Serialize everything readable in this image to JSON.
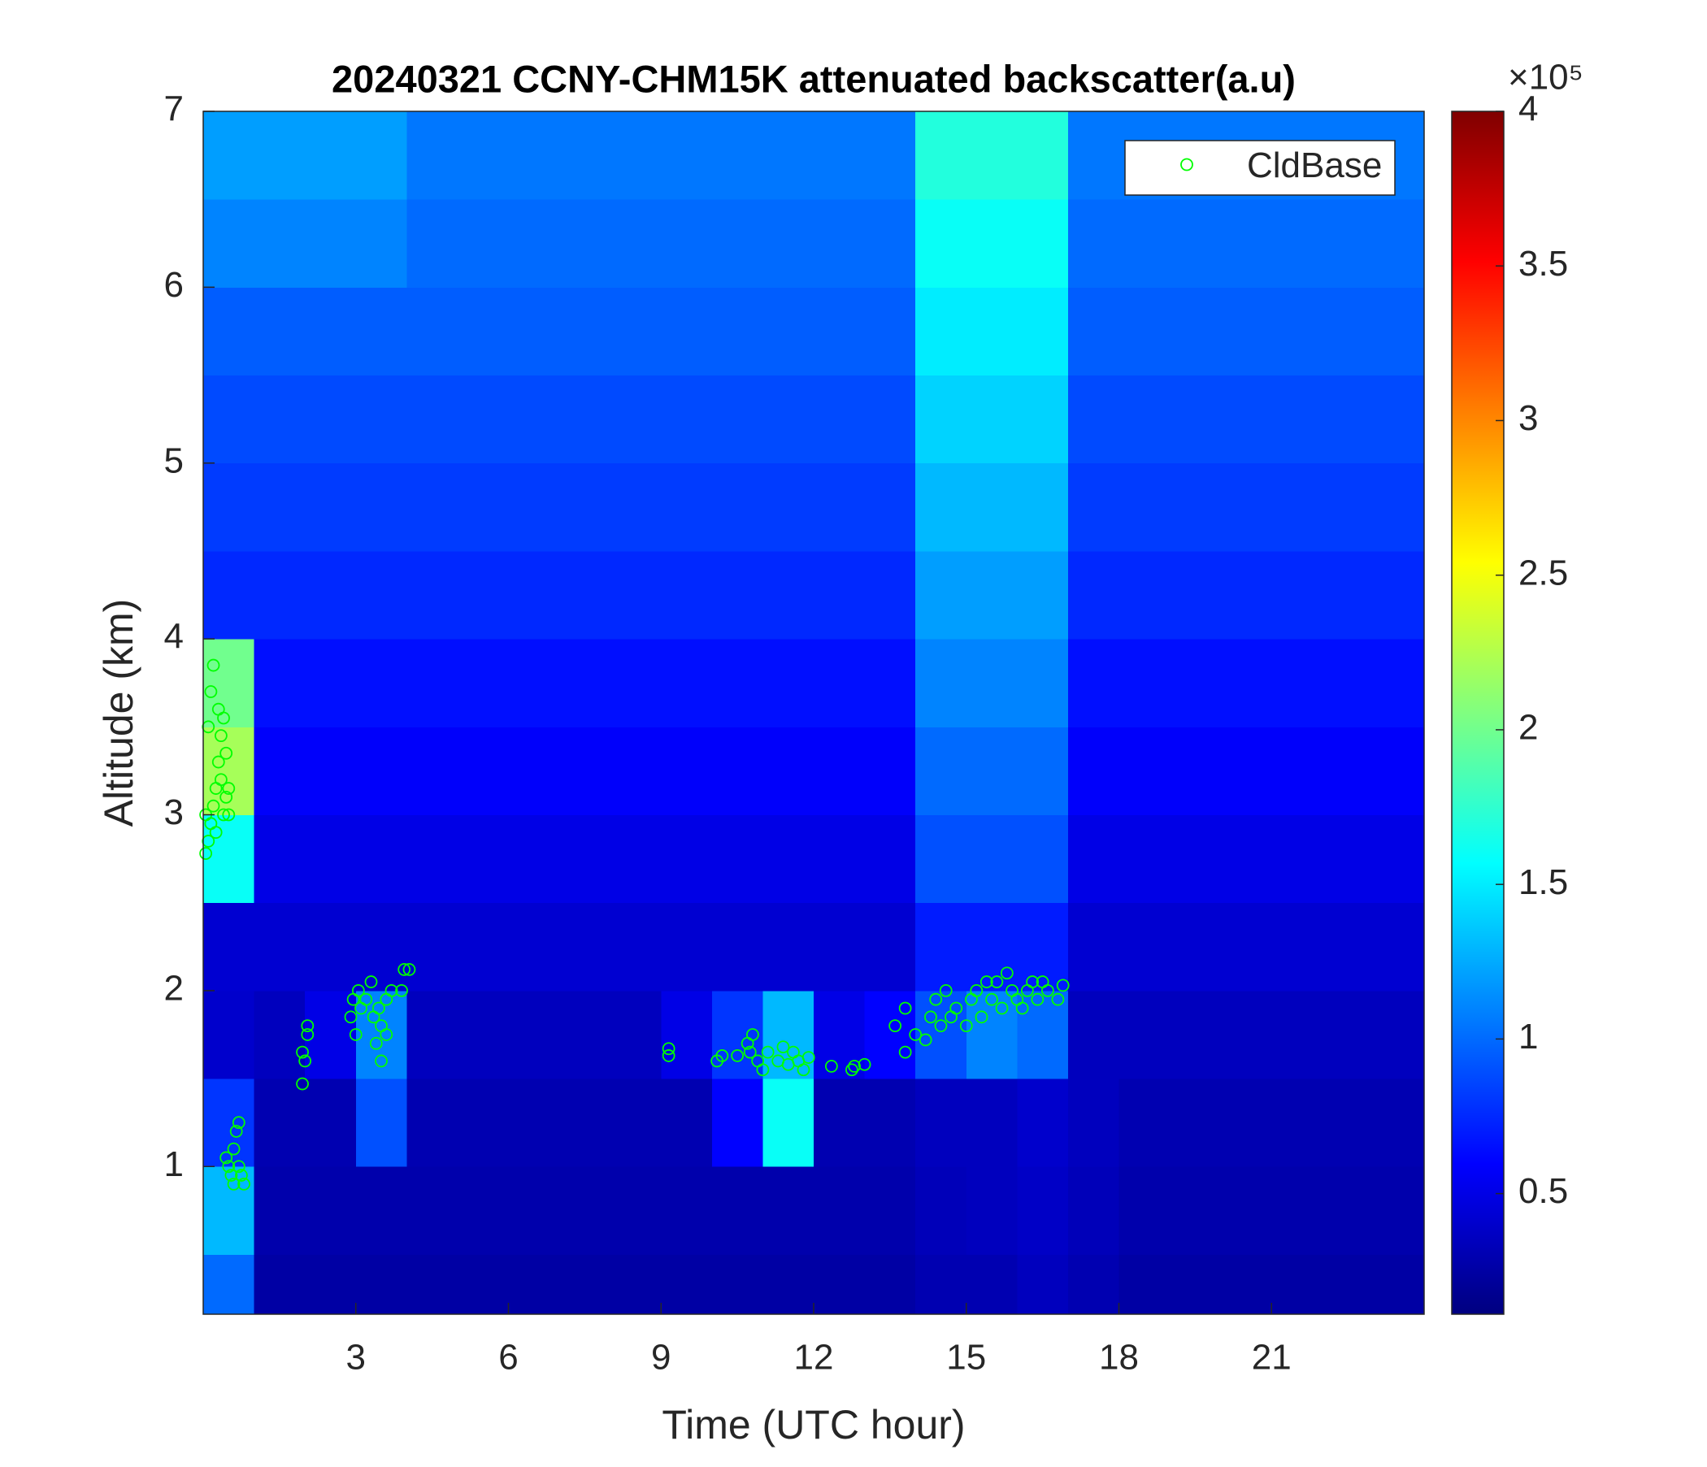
{
  "chart_data": {
    "type": "heatmap",
    "title": "20240321 CCNY-CHM15K attenuated backscatter(a.u)",
    "x_label": "Time (UTC hour)",
    "y_label": "Altitude (km)",
    "xlim": [
      0,
      24
    ],
    "ylim": [
      0.16,
      7
    ],
    "xticks": [
      3,
      6,
      9,
      12,
      15,
      18,
      21
    ],
    "yticks": [
      1,
      2,
      3,
      4,
      5,
      6,
      7
    ],
    "colormap": "jet",
    "clim": [
      0.11,
      4
    ],
    "colorbar_ticks": [
      0.5,
      1,
      1.5,
      2,
      2.5,
      3,
      3.5,
      4
    ],
    "colorbar_multiplier": "×10⁵",
    "legend": "northeast",
    "xbins": [
      0,
      1,
      2,
      3,
      4,
      5,
      6,
      7,
      8,
      9,
      10,
      11,
      12,
      13,
      14,
      15,
      16,
      17,
      18,
      19,
      20,
      21,
      22,
      23,
      24
    ],
    "ybins": [
      0.16,
      0.5,
      1,
      1.5,
      2,
      2.5,
      3,
      3.5,
      4,
      4.5,
      5,
      5.5,
      6,
      6.5,
      7
    ],
    "z": [
      [
        1.0,
        0.25,
        0.25,
        0.25,
        0.25,
        0.25,
        0.25,
        0.25,
        0.25,
        0.25,
        0.25,
        0.25,
        0.25,
        0.25,
        0.3,
        0.3,
        0.35,
        0.3,
        0.25,
        0.25,
        0.25,
        0.25,
        0.25,
        0.25
      ],
      [
        1.3,
        0.28,
        0.28,
        0.28,
        0.28,
        0.28,
        0.28,
        0.28,
        0.28,
        0.28,
        0.28,
        0.28,
        0.28,
        0.28,
        0.33,
        0.35,
        0.38,
        0.33,
        0.28,
        0.28,
        0.28,
        0.28,
        0.28,
        0.28
      ],
      [
        0.8,
        0.3,
        0.3,
        0.9,
        0.3,
        0.3,
        0.3,
        0.3,
        0.3,
        0.3,
        0.6,
        1.6,
        0.3,
        0.3,
        0.35,
        0.35,
        0.4,
        0.35,
        0.3,
        0.3,
        0.3,
        0.3,
        0.3,
        0.3
      ],
      [
        0.4,
        0.35,
        0.5,
        1.1,
        0.35,
        0.35,
        0.35,
        0.35,
        0.35,
        0.5,
        0.8,
        1.3,
        0.5,
        0.6,
        0.9,
        1.1,
        1.0,
        0.35,
        0.35,
        0.35,
        0.35,
        0.35,
        0.35,
        0.35
      ],
      [
        0.42,
        0.42,
        0.42,
        0.42,
        0.42,
        0.42,
        0.42,
        0.42,
        0.42,
        0.42,
        0.42,
        0.42,
        0.42,
        0.42,
        0.7,
        0.7,
        0.7,
        0.42,
        0.42,
        0.42,
        0.42,
        0.42,
        0.42,
        0.42
      ],
      [
        1.6,
        0.5,
        0.5,
        0.5,
        0.5,
        0.5,
        0.5,
        0.5,
        0.5,
        0.5,
        0.5,
        0.5,
        0.5,
        0.5,
        0.9,
        0.9,
        0.9,
        0.5,
        0.5,
        0.5,
        0.5,
        0.5,
        0.5,
        0.5
      ],
      [
        2.2,
        0.58,
        0.58,
        0.58,
        0.58,
        0.58,
        0.58,
        0.58,
        0.58,
        0.58,
        0.58,
        0.58,
        0.58,
        0.58,
        1.0,
        1.0,
        1.0,
        0.58,
        0.58,
        0.58,
        0.58,
        0.58,
        0.58,
        0.58
      ],
      [
        2.0,
        0.65,
        0.65,
        0.65,
        0.65,
        0.65,
        0.65,
        0.65,
        0.65,
        0.65,
        0.65,
        0.65,
        0.65,
        0.65,
        1.1,
        1.1,
        1.1,
        0.65,
        0.65,
        0.65,
        0.65,
        0.65,
        0.65,
        0.65
      ],
      [
        0.75,
        0.75,
        0.75,
        0.75,
        0.75,
        0.75,
        0.75,
        0.75,
        0.75,
        0.75,
        0.75,
        0.75,
        0.75,
        0.75,
        1.2,
        1.2,
        1.2,
        0.75,
        0.75,
        0.75,
        0.75,
        0.75,
        0.75,
        0.75
      ],
      [
        0.82,
        0.82,
        0.82,
        0.82,
        0.82,
        0.82,
        0.82,
        0.82,
        0.82,
        0.82,
        0.82,
        0.82,
        0.82,
        0.82,
        1.3,
        1.3,
        1.3,
        0.82,
        0.82,
        0.82,
        0.82,
        0.82,
        0.82,
        0.82
      ],
      [
        0.88,
        0.88,
        0.88,
        0.88,
        0.88,
        0.88,
        0.88,
        0.88,
        0.88,
        0.88,
        0.88,
        0.88,
        0.88,
        0.88,
        1.4,
        1.4,
        1.4,
        0.88,
        0.88,
        0.88,
        0.88,
        0.88,
        0.88,
        0.88
      ],
      [
        0.95,
        0.95,
        0.95,
        0.95,
        0.95,
        0.95,
        0.95,
        0.95,
        0.95,
        0.95,
        0.95,
        0.95,
        0.95,
        0.95,
        1.5,
        1.5,
        1.5,
        0.95,
        0.95,
        0.95,
        0.95,
        0.95,
        0.95,
        0.95
      ],
      [
        1.1,
        1.1,
        1.1,
        1.1,
        1.0,
        1.0,
        1.0,
        1.0,
        1.0,
        1.0,
        1.0,
        1.0,
        1.0,
        1.0,
        1.6,
        1.6,
        1.6,
        1.0,
        1.0,
        1.0,
        1.0,
        1.0,
        1.0,
        1.0
      ],
      [
        1.2,
        1.2,
        1.2,
        1.2,
        1.05,
        1.05,
        1.05,
        1.05,
        1.05,
        1.05,
        1.05,
        1.05,
        1.05,
        1.05,
        1.7,
        1.7,
        1.7,
        1.05,
        1.05,
        1.05,
        1.05,
        1.05,
        1.05,
        1.05
      ]
    ],
    "series": [
      {
        "name": "CldBase",
        "type": "scatter",
        "color": "#00ff00",
        "x": [
          0.05,
          0.1,
          0.15,
          0.2,
          0.25,
          0.3,
          0.1,
          0.15,
          0.2,
          0.3,
          0.35,
          0.4,
          0.45,
          0.5,
          0.35,
          0.45,
          0.5,
          0.4,
          0.25,
          0.05,
          0.45,
          0.5,
          0.55,
          0.6,
          0.65,
          0.7,
          0.7,
          0.75,
          0.8,
          0.6,
          1.95,
          1.95,
          2.0,
          2.05,
          2.05,
          2.9,
          2.95,
          3.0,
          3.05,
          3.1,
          3.2,
          3.3,
          3.35,
          3.4,
          3.45,
          3.5,
          3.5,
          3.6,
          3.6,
          3.7,
          3.9,
          3.95,
          4.05,
          9.15,
          9.15,
          10.1,
          10.2,
          10.5,
          10.7,
          10.75,
          10.8,
          10.9,
          11.0,
          11.1,
          11.3,
          11.4,
          11.5,
          11.6,
          11.7,
          11.8,
          11.9,
          12.35,
          12.75,
          12.8,
          13.0,
          13.6,
          13.8,
          13.8,
          14.0,
          14.2,
          14.3,
          14.4,
          14.5,
          14.6,
          14.7,
          14.8,
          15.0,
          15.1,
          15.2,
          15.3,
          15.4,
          15.5,
          15.6,
          15.7,
          15.8,
          15.9,
          16.0,
          16.1,
          16.2,
          16.3,
          16.4,
          16.5,
          16.6,
          16.8,
          16.9
        ],
        "values": [
          2.78,
          2.85,
          2.95,
          3.05,
          3.15,
          3.3,
          3.5,
          3.7,
          3.85,
          3.6,
          3.45,
          3.55,
          3.1,
          3.0,
          3.2,
          3.35,
          3.15,
          3.0,
          2.9,
          3.0,
          1.05,
          1.0,
          0.95,
          1.1,
          1.2,
          1.25,
          1.0,
          0.95,
          0.9,
          0.9,
          1.47,
          1.65,
          1.6,
          1.75,
          1.8,
          1.85,
          1.95,
          1.75,
          2.0,
          1.9,
          1.95,
          2.05,
          1.85,
          1.7,
          1.9,
          1.6,
          1.8,
          1.75,
          1.95,
          2.0,
          2.0,
          2.12,
          2.12,
          1.63,
          1.67,
          1.6,
          1.63,
          1.63,
          1.7,
          1.65,
          1.75,
          1.6,
          1.55,
          1.65,
          1.6,
          1.68,
          1.58,
          1.65,
          1.6,
          1.55,
          1.62,
          1.57,
          1.55,
          1.57,
          1.58,
          1.8,
          1.65,
          1.9,
          1.75,
          1.72,
          1.85,
          1.95,
          1.8,
          2.0,
          1.85,
          1.9,
          1.8,
          1.95,
          2.0,
          1.85,
          2.05,
          1.95,
          2.05,
          1.9,
          2.1,
          2.0,
          1.95,
          1.9,
          2.0,
          2.05,
          1.95,
          2.05,
          2.0,
          1.95,
          2.03
        ]
      }
    ]
  }
}
